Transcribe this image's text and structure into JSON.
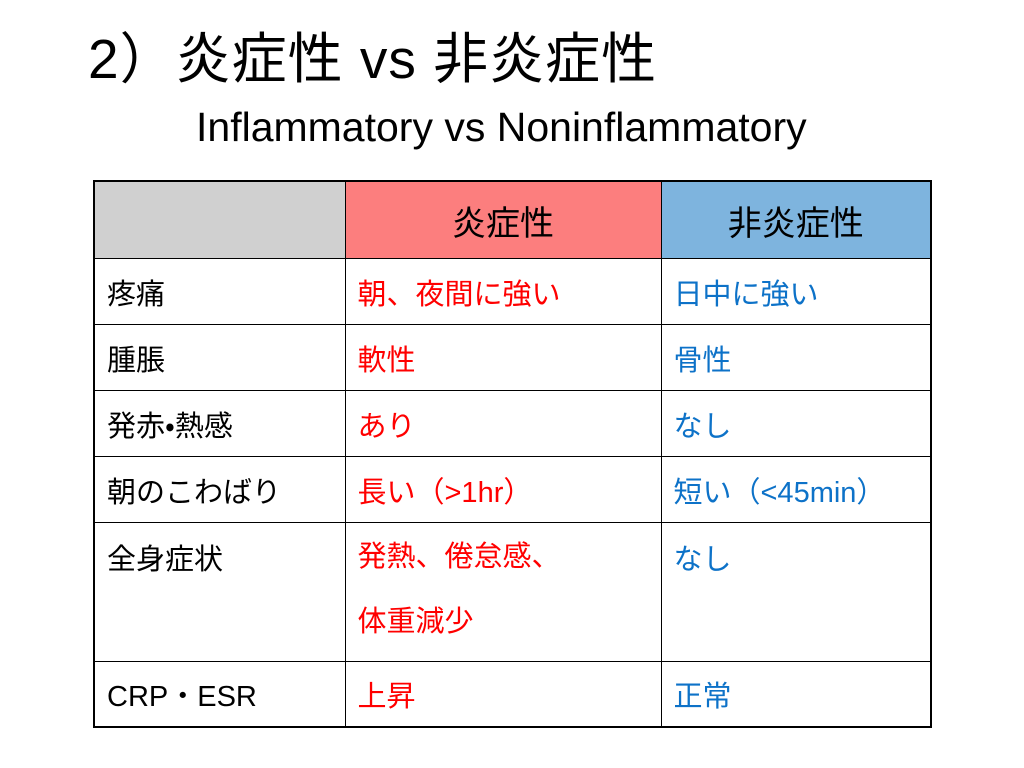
{
  "slide": {
    "title": "2）炎症性 vs 非炎症性",
    "subtitle": "Inflammatory vs Noninflammatory"
  },
  "colors": {
    "corner_bg": "#D0D0D0",
    "inflammatory_header_bg": "#FC7E7E",
    "noninflammatory_header_bg": "#7EB4DE",
    "inflammatory_text": "#FF0000",
    "noninflammatory_text": "#0D72C8",
    "border": "#000000"
  },
  "table": {
    "header": [
      "",
      "炎症性",
      "非炎症性"
    ],
    "rows": [
      {
        "label": "疼痛",
        "inflammatory": "朝、夜間に強い",
        "noninflammatory": "日中に強い"
      },
      {
        "label": "腫脹",
        "inflammatory": "軟性",
        "noninflammatory": "骨性"
      },
      {
        "label": "発赤・熱感",
        "inflammatory": "あり",
        "noninflammatory": "なし"
      },
      {
        "label": "朝のこわばり",
        "inflammatory": "長い（>1hr）",
        "noninflammatory": "短い（<45min）"
      },
      {
        "label": "全身症状",
        "inflammatory": "発熱、倦怠感、\n体重減少",
        "noninflammatory": "なし"
      },
      {
        "label": "CRP・ESR",
        "inflammatory": "上昇",
        "noninflammatory": "正常"
      }
    ]
  }
}
